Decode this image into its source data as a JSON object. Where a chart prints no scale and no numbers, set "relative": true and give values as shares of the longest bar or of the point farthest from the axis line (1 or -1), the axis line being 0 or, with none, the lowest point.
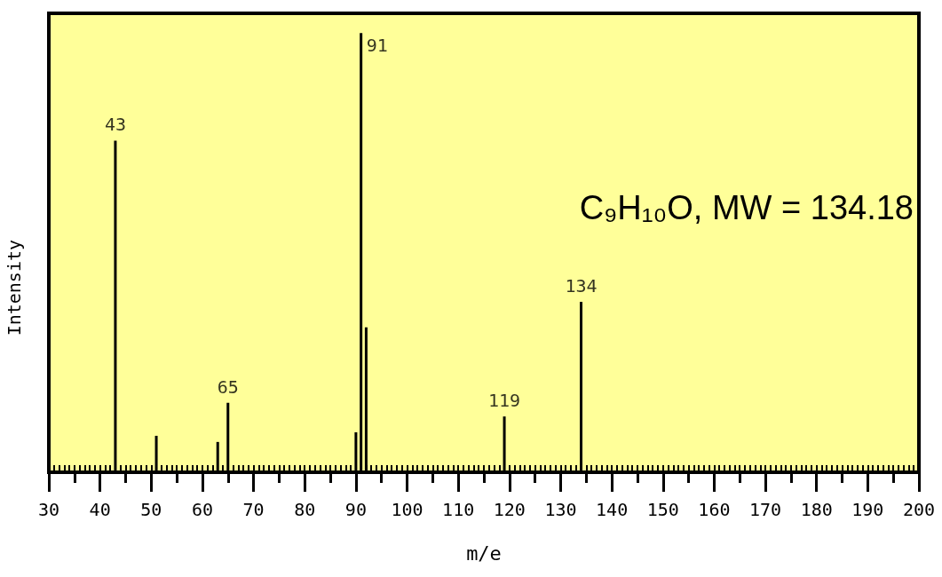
{
  "chart_data": {
    "type": "bar",
    "xlabel": "m/e",
    "ylabel": "Intensity",
    "relative": true,
    "color": "#000000",
    "x": [
      43,
      51,
      63,
      65,
      90,
      91,
      92,
      119,
      134
    ],
    "values": [
      0.755,
      0.083,
      0.069,
      0.158,
      0.091,
      1,
      0.33,
      0.127,
      0.388
    ],
    "xlim": [
      30,
      200
    ],
    "xticks": [
      30,
      40,
      50,
      60,
      70,
      80,
      90,
      100,
      110,
      120,
      130,
      140,
      150,
      160,
      170,
      180,
      190,
      200
    ],
    "annotations": [
      "C₉H₁₀O, MW = 134.18",
      {
        "text": "43",
        "x": 43,
        "y": 0.755
      },
      {
        "text": "65",
        "x": 65,
        "y": 0.158
      },
      {
        "text": "91",
        "x": 91,
        "y": 1
      },
      {
        "text": "119",
        "x": 119,
        "y": 0.127
      },
      {
        "text": "134",
        "x": 134,
        "y": 0.388
      }
    ],
    "grid": false
  }
}
